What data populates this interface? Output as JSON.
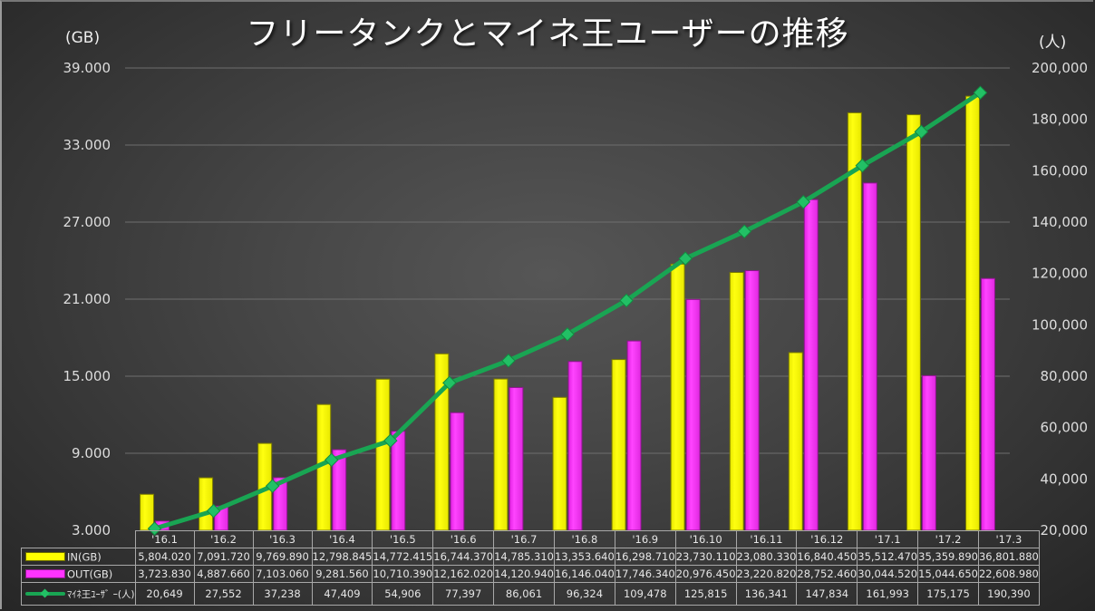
{
  "chart_data": {
    "type": "bar+line",
    "title": "フリータンクとマイネ王ユーザーの推移",
    "left_axis": {
      "unit_label": "(GB)",
      "range": [
        3000,
        39000
      ],
      "ticks": [
        "39.000",
        "33.000",
        "27.000",
        "21.000",
        "15.000",
        "9.000",
        "3.000"
      ],
      "tick_values": [
        39000,
        33000,
        27000,
        21000,
        15000,
        9000,
        3000
      ]
    },
    "right_axis": {
      "unit_label": "(人)",
      "range": [
        20000,
        200000
      ],
      "ticks": [
        "200,000",
        "180,000",
        "160,000",
        "140,000",
        "120,000",
        "100,000",
        "80,000",
        "60,000",
        "40,000",
        "20,000"
      ],
      "tick_values": [
        200000,
        180000,
        160000,
        140000,
        120000,
        100000,
        80000,
        60000,
        40000,
        20000
      ]
    },
    "grid": true,
    "legend_placement": "data-table",
    "categories": [
      "'16.1",
      "'16.2",
      "'16.3",
      "'16.4",
      "'16.5",
      "'16.6",
      "'16.7",
      "'16.8",
      "'16.9",
      "'16.10",
      "'16.11",
      "'16.12",
      "'17.1",
      "'17.2",
      "'17.3"
    ],
    "series": [
      {
        "name": "IN(GB)",
        "kind": "bar",
        "axis": "left",
        "color": "#ffff00",
        "values": [
          5804.02,
          7091.72,
          9769.89,
          12798.845,
          14772.415,
          16744.37,
          14785.31,
          13353.64,
          16298.71,
          23730.11,
          23080.33,
          16840.45,
          35512.47,
          35359.89,
          36801.88
        ],
        "labels": [
          "5,804.020",
          "7,091.720",
          "9,769.890",
          "12,798.845",
          "14,772.415",
          "16,744.370",
          "14,785.310",
          "13,353.640",
          "16,298.710",
          "23,730.110",
          "23,080.330",
          "16,840.450",
          "35,512.470",
          "35,359.890",
          "36,801.880"
        ]
      },
      {
        "name": "OUT(GB)",
        "kind": "bar",
        "axis": "left",
        "color": "#ff33ff",
        "values": [
          3723.83,
          4887.66,
          7103.06,
          9281.56,
          10710.39,
          12162.02,
          14120.94,
          16146.04,
          17746.34,
          20976.45,
          23220.82,
          28752.46,
          30044.52,
          15044.65,
          22608.98
        ],
        "labels": [
          "3,723.830",
          "4,887.660",
          "7,103.060",
          "9,281.560",
          "10,710.390",
          "12,162.020",
          "14,120.940",
          "16,146.040",
          "17,746.340",
          "20,976.450",
          "23,220.820",
          "28,752.460",
          "30,044.520",
          "15,044.650",
          "22,608.980"
        ]
      },
      {
        "name": "ﾏｲﾈ王ﾕｰｻﾞ ｰ(人)",
        "kind": "line",
        "axis": "right",
        "color": "#19a553",
        "values": [
          20649,
          27552,
          37238,
          47409,
          54906,
          77397,
          86061,
          96324,
          109478,
          125815,
          136341,
          147834,
          161993,
          175175,
          190390
        ],
        "labels": [
          "20,649",
          "27,552",
          "37,238",
          "47,409",
          "54,906",
          "77,397",
          "86,061",
          "96,324",
          "109,478",
          "125,815",
          "136,341",
          "147,834",
          "161,993",
          "175,175",
          "190,390"
        ]
      }
    ]
  }
}
